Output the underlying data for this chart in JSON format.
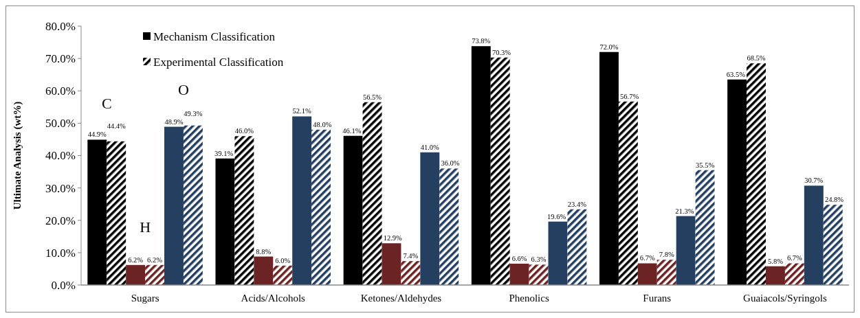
{
  "chart_data": {
    "type": "bar",
    "ylabel": "Ultimate Analysis (wt%)",
    "categories": [
      "Sugars",
      "Acids/Alcohols",
      "Ketones/Aldehydes",
      "Phenolics",
      "Furans",
      "Guaiacols/Syringols"
    ],
    "series": [
      {
        "name": "Mechanism Classification",
        "color": "#000000",
        "values": [
          44.9,
          39.1,
          46.1,
          73.8,
          72.0,
          63.5
        ],
        "value_labels": [
          "44.9%",
          "39.1%",
          "46.1%",
          "73.8%",
          "72.0%",
          "63.5%"
        ]
      },
      {
        "name": "Experimental Classification",
        "color": "#000000",
        "values": [
          44.4,
          46.0,
          56.5,
          70.3,
          56.7,
          68.5
        ],
        "value_labels": [
          "44.4%",
          "46.0%",
          "56.5%",
          "70.3%",
          "56.7%",
          "68.5%"
        ]
      },
      {
        "color": "#6b2323",
        "values": [
          6.2,
          8.8,
          12.9,
          6.6,
          6.7,
          5.8
        ],
        "value_labels": [
          "6.2%",
          "8.8%",
          "12.9%",
          "6.6%",
          "6.7%",
          "5.8%"
        ]
      },
      {
        "color": "#6b2323",
        "values": [
          6.2,
          6.0,
          7.4,
          6.3,
          7.8,
          6.7
        ],
        "value_labels": [
          "6.2%",
          "6.0%",
          "7.4%",
          "6.3%",
          "7.8%",
          "6.7%"
        ]
      },
      {
        "color": "#243f60",
        "values": [
          48.9,
          52.1,
          41.0,
          19.6,
          21.3,
          30.7
        ],
        "value_labels": [
          "48.9%",
          "52.1%",
          "41.0%",
          "19.6%",
          "21.3%",
          "30.7%"
        ]
      },
      {
        "color": "#243f60",
        "values": [
          49.3,
          48.0,
          36.0,
          23.4,
          35.5,
          24.8
        ],
        "value_labels": [
          "49.3%",
          "48.0%",
          "36.0%",
          "23.4%",
          "35.5%",
          "24.8%"
        ]
      }
    ],
    "ylim": [
      0,
      80
    ],
    "yticks": [
      {
        "value": 0,
        "label": "0.0%"
      },
      {
        "value": 10,
        "label": "10.0%"
      },
      {
        "value": 20,
        "label": "20.0%"
      },
      {
        "value": 30,
        "label": "30.0%"
      },
      {
        "value": 40,
        "label": "40.0%"
      },
      {
        "value": 50,
        "label": "50.0%"
      },
      {
        "value": 60,
        "label": "60.0%"
      },
      {
        "value": 70,
        "label": "70.0%"
      },
      {
        "value": 80,
        "label": "80.0%"
      }
    ],
    "legend": "top left",
    "grid": false,
    "annotations": [
      "C",
      "H",
      "O"
    ]
  }
}
